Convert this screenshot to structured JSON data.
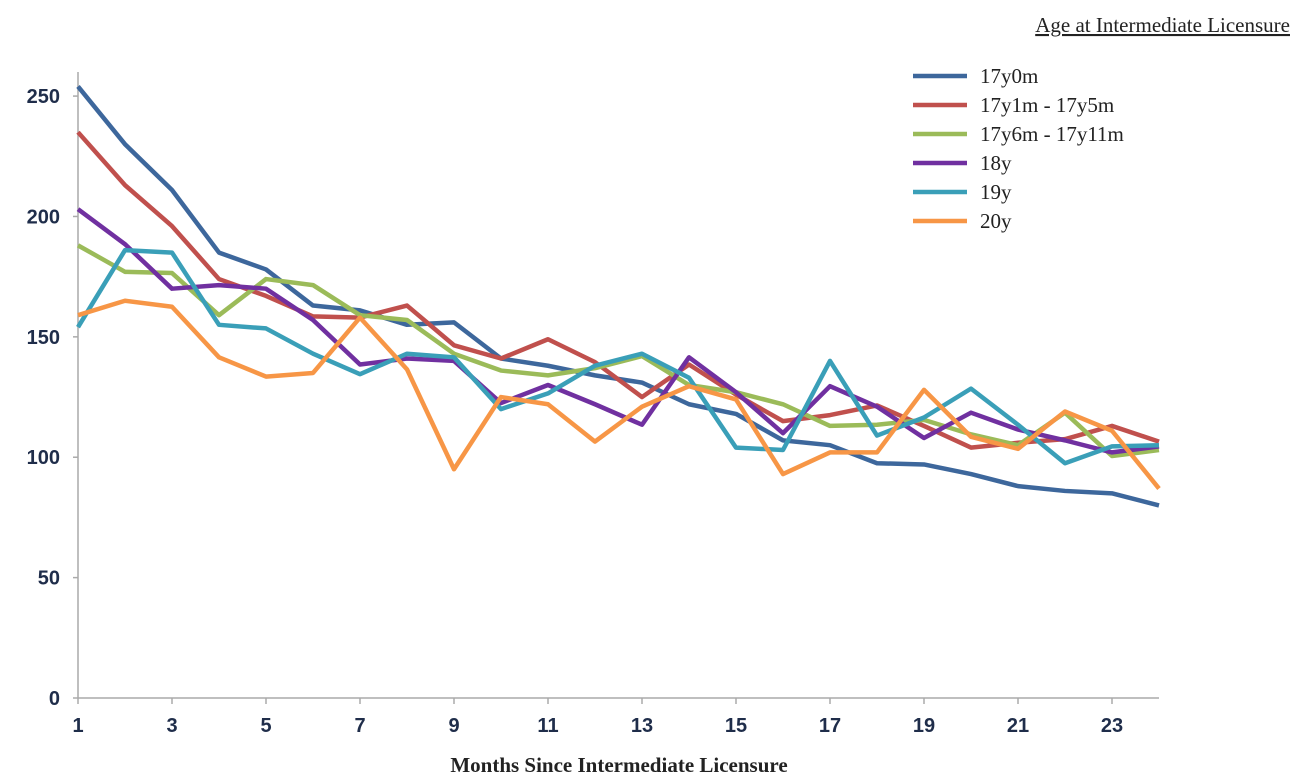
{
  "chart_data": {
    "type": "line",
    "x_label": "Months Since Intermediate Licensure",
    "legend_title": "Age at Intermediate Licensure",
    "x": [
      1,
      2,
      3,
      4,
      5,
      6,
      7,
      8,
      9,
      10,
      11,
      12,
      13,
      14,
      15,
      16,
      17,
      18,
      19,
      20,
      21,
      22,
      23,
      24
    ],
    "xlim": [
      1,
      24
    ],
    "xticks": [
      1,
      3,
      5,
      7,
      9,
      11,
      13,
      15,
      17,
      19,
      21,
      23
    ],
    "ylim": [
      0,
      260
    ],
    "yticks": [
      0,
      50,
      100,
      150,
      200,
      250
    ],
    "legend": "top-right",
    "series": [
      {
        "name": "17y0m",
        "color": "#3d679c",
        "values": [
          254,
          230,
          211,
          185,
          178,
          163,
          161,
          155,
          156,
          141,
          138,
          134,
          131,
          122,
          118,
          107,
          105,
          97.5,
          97,
          93,
          88,
          86,
          85,
          80
        ]
      },
      {
        "name": "17y1m - 17y5m",
        "color": "#c0504d",
        "values": [
          235,
          213,
          196,
          174,
          167,
          158.5,
          158,
          163,
          146.5,
          141,
          149,
          139.5,
          125,
          138.5,
          126,
          115,
          117.5,
          121.5,
          113,
          104,
          106,
          107.5,
          113,
          106.5
        ]
      },
      {
        "name": "17y6m - 17y11m",
        "color": "#9bbb59",
        "values": [
          188,
          177,
          176.5,
          159,
          174,
          171.5,
          159,
          157,
          143,
          136,
          134,
          137,
          142,
          130,
          127,
          122,
          113,
          113.5,
          115.5,
          109.5,
          105,
          118.5,
          100.5,
          103
        ]
      },
      {
        "name": "18y",
        "color": "#7030a0",
        "values": [
          203,
          188.5,
          170,
          171.5,
          170,
          157,
          138.5,
          141,
          140,
          122.5,
          130,
          122,
          113.5,
          141.5,
          127,
          110,
          129.5,
          121,
          108,
          118.5,
          111.5,
          107,
          102,
          104.5
        ]
      },
      {
        "name": "19y",
        "color": "#3a9fb8",
        "values": [
          154,
          186,
          185,
          155,
          153.5,
          143,
          134.5,
          143,
          141.5,
          120,
          126.5,
          138,
          143,
          133,
          104,
          103,
          140,
          109,
          116.5,
          128.5,
          113.5,
          97.5,
          104.5,
          105
        ]
      },
      {
        "name": "20y",
        "color": "#f79646",
        "values": [
          159,
          165,
          162.5,
          141.5,
          133.5,
          135,
          158,
          136.5,
          95,
          125,
          122,
          106.5,
          121,
          129.5,
          124,
          93,
          102,
          102,
          128,
          108.5,
          103.5,
          119,
          111,
          87
        ]
      }
    ]
  }
}
